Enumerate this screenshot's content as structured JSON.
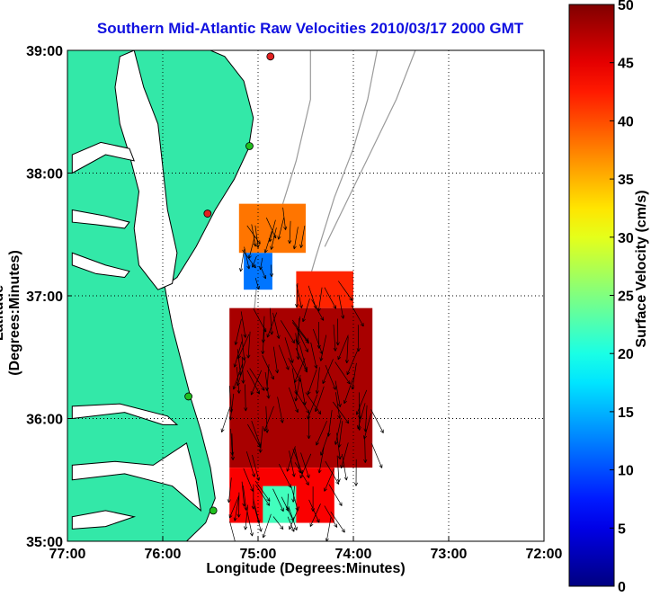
{
  "chart_data": {
    "type": "heatmap",
    "title": "Southern Mid-Atlantic Raw Velocities 2010/03/17 2000 GMT",
    "xlabel": "Longitude (Degrees:Minutes)",
    "ylabel": "Latitude (Degrees:Minutes)",
    "colorbar_label": "Surface Velocity (cm/s)",
    "x_ticks": [
      "77:00",
      "76:00",
      "75:00",
      "74:00",
      "73:00",
      "72:00"
    ],
    "y_ticks": [
      "39:00",
      "38:00",
      "37:00",
      "36:00",
      "35:00"
    ],
    "colorbar_ticks": [
      "0",
      "5",
      "10",
      "15",
      "20",
      "25",
      "30",
      "35",
      "40",
      "45",
      "50"
    ],
    "xlim": [
      -77,
      -72
    ],
    "ylim": [
      35,
      39
    ],
    "clim": [
      0,
      50
    ],
    "grid": true,
    "colormap": "jet",
    "land_color": "#33e8a8",
    "station_markers": [
      {
        "lon": -74.87,
        "lat": 38.95,
        "color": "#e02020"
      },
      {
        "lon": -75.09,
        "lat": 38.22,
        "color": "#20c020"
      },
      {
        "lon": -75.53,
        "lat": 37.67,
        "color": "#e02020"
      },
      {
        "lon": -75.73,
        "lat": 36.18,
        "color": "#20c020"
      },
      {
        "lon": -75.47,
        "lat": 35.25,
        "color": "#20c020"
      }
    ],
    "velocity_field_regions": [
      {
        "lat_range": [
          37.35,
          37.75
        ],
        "lon_range": [
          -75.2,
          -74.5
        ],
        "speed_cm_s": 38
      },
      {
        "lat_range": [
          37.05,
          37.35
        ],
        "lon_range": [
          -75.15,
          -74.85
        ],
        "speed_cm_s": 12
      },
      {
        "lat_range": [
          36.9,
          37.2
        ],
        "lon_range": [
          -74.6,
          -74.0
        ],
        "speed_cm_s": 42
      },
      {
        "lat_range": [
          35.6,
          36.9
        ],
        "lon_range": [
          -75.3,
          -73.8
        ],
        "speed_cm_s": 48
      },
      {
        "lat_range": [
          35.15,
          35.6
        ],
        "lon_range": [
          -75.3,
          -74.2
        ],
        "speed_cm_s": 44
      },
      {
        "lat_range": [
          35.15,
          35.45
        ],
        "lon_range": [
          -74.95,
          -74.6
        ],
        "speed_cm_s": 22
      }
    ]
  }
}
